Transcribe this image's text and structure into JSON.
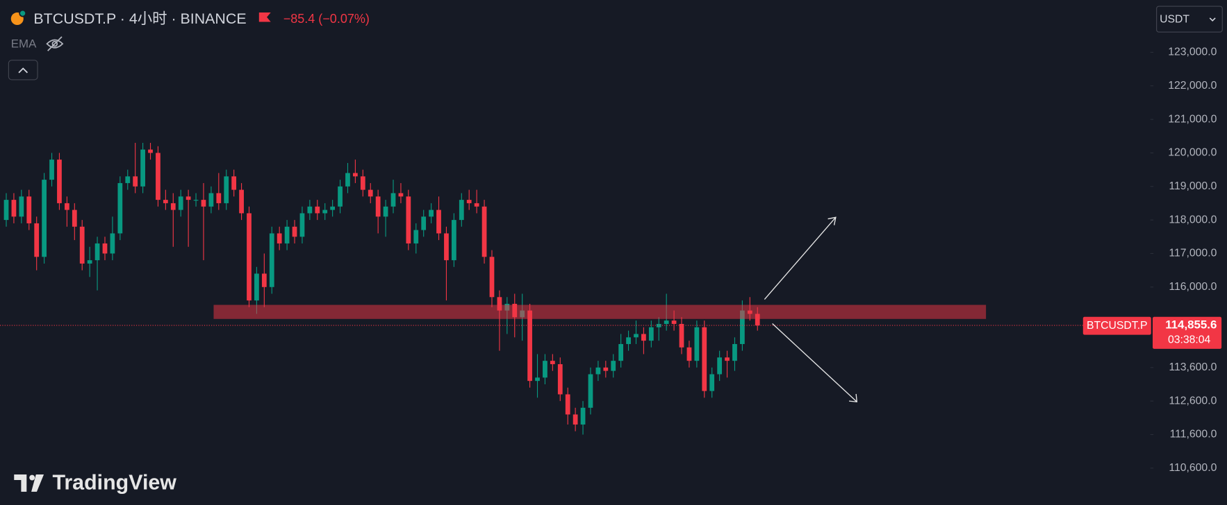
{
  "chart_data": {
    "type": "candlestick",
    "title": "BTCUSDT.P · 4小时 · BINANCE",
    "change_label": "−85.4 (−0.07%)",
    "indicator": "EMA",
    "currency": "USDT",
    "symbol": "BTCUSDT.P",
    "last_price_label": "114,855.6",
    "countdown": "03:38:04",
    "watermark": "TradingView",
    "up_color": "#089981",
    "down_color": "#f23645",
    "ylim": [
      109500,
      124560
    ],
    "yticks": [
      {
        "value": 123000,
        "label": "123,000.0"
      },
      {
        "value": 122000,
        "label": "122,000.0"
      },
      {
        "value": 121000,
        "label": "121,000.0"
      },
      {
        "value": 120000,
        "label": "120,000.0"
      },
      {
        "value": 119000,
        "label": "119,000.0"
      },
      {
        "value": 118000,
        "label": "118,000.0"
      },
      {
        "value": 117000,
        "label": "117,000.0"
      },
      {
        "value": 116000,
        "label": "116,000.0"
      },
      {
        "value": 113600,
        "label": "113,600.0"
      },
      {
        "value": 112600,
        "label": "112,600.0"
      },
      {
        "value": 111600,
        "label": "111,600.0"
      },
      {
        "value": 110600,
        "label": "110,600.0"
      }
    ],
    "open": [
      118000,
      118600,
      118100,
      118700,
      117900,
      116900,
      119200,
      119800,
      118500,
      118300,
      117800,
      116700,
      116800,
      117300,
      117000,
      117600,
      119100,
      119300,
      119000,
      120100,
      120000,
      118600,
      118500,
      118300,
      118700,
      118600,
      118600,
      118400,
      118800,
      118500,
      119300,
      118900,
      118200,
      115600,
      116400,
      116000,
      117600,
      117300,
      117800,
      117500,
      118200,
      118400,
      118200,
      118300,
      118400,
      119000,
      119400,
      119300,
      118900,
      118700,
      118100,
      118400,
      118800,
      118700,
      117300,
      117700,
      118100,
      118300,
      117600,
      116800,
      118000,
      118600,
      118500,
      118400,
      116900,
      115700,
      115300,
      115500,
      115100,
      115300,
      113200,
      113300,
      113800,
      113700,
      112800,
      112200,
      111900,
      112400,
      113400,
      113600,
      113500,
      113800,
      114300,
      114500,
      114600,
      114400,
      114800,
      114900,
      115000,
      114900,
      114200,
      113800,
      114800,
      112900,
      113400,
      113900,
      113800,
      114300,
      115300,
      115200
    ],
    "high": [
      118800,
      118800,
      118900,
      118900,
      118100,
      119400,
      120000,
      120000,
      118700,
      118500,
      118000,
      117200,
      117500,
      117500,
      118100,
      119300,
      119500,
      120300,
      120300,
      120300,
      120200,
      118900,
      118800,
      118900,
      118900,
      118800,
      119100,
      119000,
      119400,
      119500,
      119500,
      119100,
      118400,
      116600,
      117000,
      117800,
      117800,
      118000,
      118000,
      118400,
      118600,
      118600,
      118500,
      118600,
      119200,
      119700,
      119800,
      119500,
      119100,
      118900,
      118600,
      119200,
      119100,
      118900,
      117900,
      118300,
      118500,
      118700,
      117800,
      118200,
      118800,
      118900,
      118900,
      118600,
      117100,
      115900,
      115700,
      115800,
      115800,
      115500,
      114000,
      114000,
      114000,
      113900,
      113000,
      112400,
      112600,
      113600,
      113800,
      113800,
      114000,
      114600,
      114700,
      115000,
      114800,
      115000,
      115100,
      115800,
      115300,
      115100,
      114400,
      115000,
      115000,
      113600,
      114100,
      114100,
      114500,
      115600,
      115700,
      115400
    ],
    "low": [
      117800,
      117900,
      117900,
      117700,
      116500,
      116700,
      119000,
      118300,
      117800,
      117400,
      116500,
      116300,
      115900,
      116800,
      116800,
      117400,
      118900,
      118800,
      118800,
      119800,
      118400,
      118300,
      117200,
      118100,
      117200,
      118400,
      116800,
      118200,
      118300,
      118300,
      118700,
      118000,
      115400,
      115200,
      115400,
      115800,
      117100,
      117100,
      117300,
      117300,
      118000,
      118000,
      118000,
      118100,
      118200,
      118800,
      119100,
      118700,
      118500,
      117600,
      117500,
      118200,
      118500,
      117100,
      117000,
      117500,
      117900,
      117400,
      115600,
      116600,
      117800,
      118300,
      118200,
      116700,
      115400,
      114100,
      114600,
      114500,
      114400,
      113000,
      112700,
      113100,
      113500,
      112600,
      111900,
      111700,
      111600,
      112200,
      113200,
      113300,
      113300,
      113600,
      114100,
      114300,
      114000,
      114200,
      114400,
      114700,
      114700,
      114000,
      113600,
      113600,
      112700,
      112700,
      113200,
      113300,
      113500,
      114100,
      115000,
      114700
    ],
    "close": [
      118600,
      118100,
      118700,
      117900,
      116900,
      119200,
      119800,
      118500,
      118300,
      117800,
      116700,
      116800,
      117300,
      117000,
      117600,
      119100,
      119300,
      119000,
      120100,
      120000,
      118600,
      118500,
      118300,
      118700,
      118600,
      118600,
      118400,
      118800,
      118500,
      119300,
      118900,
      118200,
      115600,
      116400,
      116000,
      117600,
      117300,
      117800,
      117500,
      118200,
      118400,
      118200,
      118300,
      118400,
      119000,
      119400,
      119300,
      118900,
      118700,
      118100,
      118400,
      118800,
      118700,
      117300,
      117700,
      118100,
      118300,
      117600,
      116800,
      118000,
      118600,
      118500,
      118400,
      116900,
      115700,
      115300,
      115500,
      115100,
      115300,
      113200,
      113300,
      113800,
      113700,
      112800,
      112200,
      111900,
      112400,
      113400,
      113600,
      113500,
      113800,
      114300,
      114500,
      114600,
      114400,
      114800,
      114900,
      115000,
      114900,
      114200,
      113800,
      114800,
      112900,
      113400,
      113900,
      113800,
      114300,
      115300,
      115200,
      114855.6
    ]
  }
}
